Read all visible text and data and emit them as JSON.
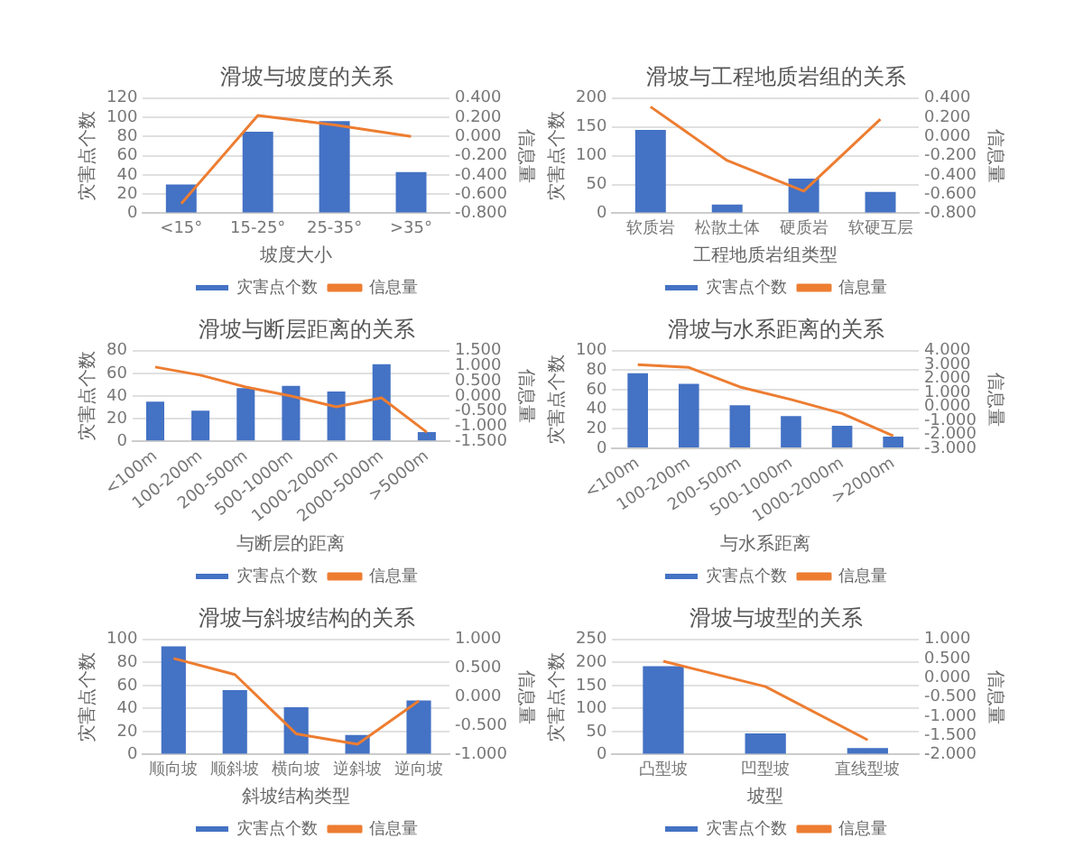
{
  "chart_data": [
    {
      "type": "bar",
      "title": "滑坡与坡度的关系",
      "xlabel": "坡度大小",
      "ylabel": "灾害点个数",
      "y2label": "信息量",
      "categories": [
        "<15°",
        "15-25°",
        "25-35°",
        ">35°"
      ],
      "series": [
        {
          "name": "灾害点个数",
          "color": "#4472c4",
          "values": [
            30,
            85,
            96,
            43
          ]
        },
        {
          "name": "信息量",
          "type": "line",
          "axis": "y2",
          "color": "#ed7d31",
          "values": [
            -0.7,
            0.22,
            0.12,
            0.0
          ]
        }
      ],
      "ylim": [
        0,
        120
      ],
      "yticks": [
        0,
        20,
        40,
        60,
        80,
        100,
        120
      ],
      "y2lim": [
        -0.8,
        0.4
      ],
      "y2ticks": [
        {
          "value": -0.8,
          "label": "-0.800"
        },
        {
          "value": -0.6,
          "label": "-0.600"
        },
        {
          "value": -0.4,
          "label": "-0.400"
        },
        {
          "value": -0.2,
          "label": "-0.200"
        },
        {
          "value": 0,
          "label": "0.000"
        },
        {
          "value": 0.2,
          "label": "0.200"
        },
        {
          "value": 0.4,
          "label": "0.400"
        }
      ],
      "grid": "y",
      "legend": "bottom",
      "marker": "none",
      "line_style": "solid"
    },
    {
      "type": "bar",
      "title": "滑坡与工程地质岩组的关系",
      "xlabel": "工程地质岩组类型",
      "ylabel": "灾害点个数",
      "y2label": "信息量",
      "categories": [
        "软质岩",
        "松散土体",
        "硬质岩",
        "软硬互层"
      ],
      "series": [
        {
          "name": "灾害点个数",
          "color": "#4472c4",
          "values": [
            145,
            15,
            60,
            37
          ]
        },
        {
          "name": "信息量",
          "type": "line",
          "axis": "y2",
          "color": "#ed7d31",
          "values": [
            0.31,
            -0.25,
            -0.57,
            0.18
          ]
        }
      ],
      "ylim": [
        0,
        200
      ],
      "yticks": [
        0,
        50,
        100,
        150,
        200
      ],
      "y2lim": [
        -0.8,
        0.4
      ],
      "y2ticks": [
        {
          "value": -0.8,
          "label": "-0.800"
        },
        {
          "value": -0.6,
          "label": "-0.600"
        },
        {
          "value": -0.4,
          "label": "-0.400"
        },
        {
          "value": -0.2,
          "label": "-0.200"
        },
        {
          "value": 0,
          "label": "0.000"
        },
        {
          "value": 0.2,
          "label": "0.200"
        },
        {
          "value": 0.4,
          "label": "0.400"
        }
      ],
      "grid": "y",
      "legend": "bottom",
      "marker": "none",
      "line_style": "solid"
    },
    {
      "type": "bar",
      "title": "滑坡与断层距离的关系",
      "xlabel": "与断层的距离",
      "ylabel": "灾害点个数",
      "y2label": "信息量",
      "categories": [
        "<100m",
        "100-200m",
        "200-500m",
        "500-1000m",
        "1000-2000m",
        "2000-5000m",
        ">5000m"
      ],
      "series": [
        {
          "name": "灾害点个数",
          "color": "#4472c4",
          "values": [
            35,
            27,
            47,
            49,
            44,
            68,
            8
          ]
        },
        {
          "name": "信息量",
          "type": "line",
          "axis": "y2",
          "color": "#ed7d31",
          "values": [
            0.96,
            0.69,
            0.3,
            0.0,
            -0.36,
            -0.06,
            -1.2
          ]
        }
      ],
      "ylim": [
        0,
        80
      ],
      "yticks": [
        0,
        20,
        40,
        60,
        80
      ],
      "y2lim": [
        -1.5,
        1.5
      ],
      "y2ticks": [
        {
          "value": -1.5,
          "label": "-1.500"
        },
        {
          "value": -1,
          "label": "-1.000"
        },
        {
          "value": -0.5,
          "label": "-0.500"
        },
        {
          "value": 0,
          "label": "0.000"
        },
        {
          "value": 0.5,
          "label": "0.500"
        },
        {
          "value": 1,
          "label": "1.000"
        },
        {
          "value": 1.5,
          "label": "1.500"
        }
      ],
      "grid": "y",
      "legend": "bottom",
      "marker": "none",
      "line_style": "solid"
    },
    {
      "type": "bar",
      "title": "滑坡与水系距离的关系",
      "xlabel": "与水系距离",
      "ylabel": "灾害点个数",
      "y2label": "信息量",
      "categories": [
        "<100m",
        "100-200m",
        "200-500m",
        "500-1000m",
        "1000-2000m",
        ">2000m"
      ],
      "series": [
        {
          "name": "灾害点个数",
          "color": "#4472c4",
          "values": [
            77,
            66,
            44,
            33,
            23,
            12
          ]
        },
        {
          "name": "信息量",
          "type": "line",
          "axis": "y2",
          "color": "#ed7d31",
          "values": [
            3.0,
            2.8,
            1.4,
            0.5,
            -0.5,
            -2.1
          ]
        }
      ],
      "ylim": [
        0,
        100
      ],
      "yticks": [
        0,
        20,
        40,
        60,
        80,
        100
      ],
      "y2lim": [
        -3,
        4
      ],
      "y2ticks": [
        {
          "value": -3,
          "label": "-3.000"
        },
        {
          "value": -2,
          "label": "-2.000"
        },
        {
          "value": -1,
          "label": "-1.000"
        },
        {
          "value": 0,
          "label": "0.000"
        },
        {
          "value": 1,
          "label": "1.000"
        },
        {
          "value": 2,
          "label": "2.000"
        },
        {
          "value": 3,
          "label": "3.000"
        },
        {
          "value": 4,
          "label": "4.000"
        }
      ],
      "grid": "y",
      "legend": "bottom",
      "marker": "none",
      "line_style": "solid"
    },
    {
      "type": "bar",
      "title": "滑坡与斜坡结构的关系",
      "xlabel": "斜坡结构类型",
      "ylabel": "灾害点个数",
      "y2label": "信息量",
      "categories": [
        "顺向坡",
        "顺斜坡",
        "横向坡",
        "逆斜坡",
        "逆向坡"
      ],
      "series": [
        {
          "name": "灾害点个数",
          "color": "#4472c4",
          "values": [
            94,
            56,
            41,
            17,
            47
          ]
        },
        {
          "name": "信息量",
          "type": "line",
          "axis": "y2",
          "color": "#ed7d31",
          "values": [
            0.67,
            0.39,
            -0.64,
            -0.82,
            -0.07
          ]
        }
      ],
      "ylim": [
        0,
        100
      ],
      "yticks": [
        0,
        20,
        40,
        60,
        80,
        100
      ],
      "y2lim": [
        -1,
        1
      ],
      "y2ticks": [
        {
          "value": -1,
          "label": "-1.000"
        },
        {
          "value": -0.5,
          "label": "-0.500"
        },
        {
          "value": 0,
          "label": "0.000"
        },
        {
          "value": 0.5,
          "label": "0.500"
        },
        {
          "value": 1,
          "label": "1.000"
        }
      ],
      "grid": "y",
      "legend": "bottom",
      "marker": "none",
      "line_style": "solid"
    },
    {
      "type": "bar",
      "title": "滑坡与坡型的关系",
      "xlabel": "坡型",
      "ylabel": "灾害点个数",
      "y2label": "信息量",
      "categories": [
        "凸型坡",
        "凹型坡",
        "直线型坡"
      ],
      "series": [
        {
          "name": "灾害点个数",
          "color": "#4472c4",
          "values": [
            192,
            46,
            14
          ]
        },
        {
          "name": "信息量",
          "type": "line",
          "axis": "y2",
          "color": "#ed7d31",
          "values": [
            0.43,
            -0.23,
            -1.62
          ]
        }
      ],
      "ylim": [
        0,
        250
      ],
      "yticks": [
        0,
        50,
        100,
        150,
        200,
        250
      ],
      "y2lim": [
        -2,
        1
      ],
      "y2ticks": [
        {
          "value": -2,
          "label": "-2.000"
        },
        {
          "value": -1.5,
          "label": "-1.500"
        },
        {
          "value": -1,
          "label": "-1.000"
        },
        {
          "value": -0.5,
          "label": "-0.500"
        },
        {
          "value": 0,
          "label": "0.000"
        },
        {
          "value": 0.5,
          "label": "0.500"
        },
        {
          "value": 1,
          "label": "1.000"
        }
      ],
      "grid": "y",
      "legend": "bottom",
      "marker": "none",
      "line_style": "solid"
    }
  ]
}
